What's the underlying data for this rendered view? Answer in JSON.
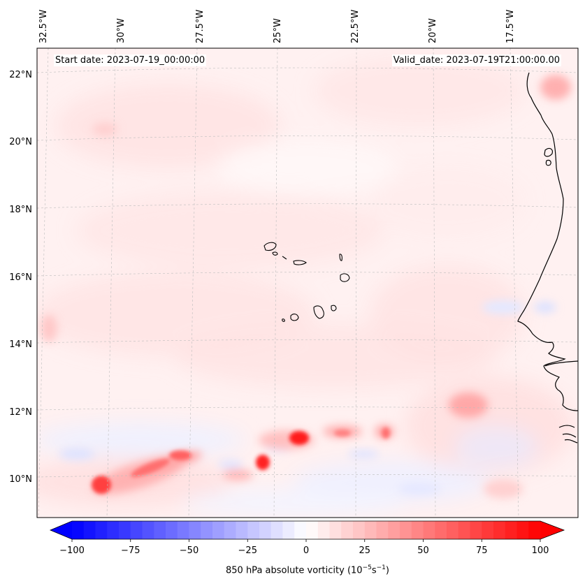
{
  "header": {
    "start_date": "Start date: 2023-07-19_00:00:00",
    "valid_date": "Valid_date: 2023-07-19T21:00:00.00"
  },
  "map": {
    "lon_labels": [
      "32.5°W",
      "30°W",
      "27.5°W",
      "25°W",
      "22.5°W",
      "20°W",
      "17.5°W"
    ],
    "lat_labels": [
      "22°N",
      "20°N",
      "18°N",
      "16°N",
      "14°N",
      "12°N",
      "10°N"
    ],
    "variable": "850 hPa absolute vorticity",
    "region": "Cape Verde Islands and West African coast"
  },
  "colorbar": {
    "label_text": "850 hPa absolute vorticity (10",
    "label_exp1": "−5",
    "label_mid": "s",
    "label_exp2": "−1",
    "label_close": ")",
    "min": -100,
    "max": 100,
    "ticks": [
      "−100",
      "−75",
      "−50",
      "−25",
      "0",
      "25",
      "50",
      "75",
      "100"
    ],
    "colors": {
      "neg": "#0000ff",
      "zero": "#ffffff",
      "pos": "#ff0000"
    }
  }
}
